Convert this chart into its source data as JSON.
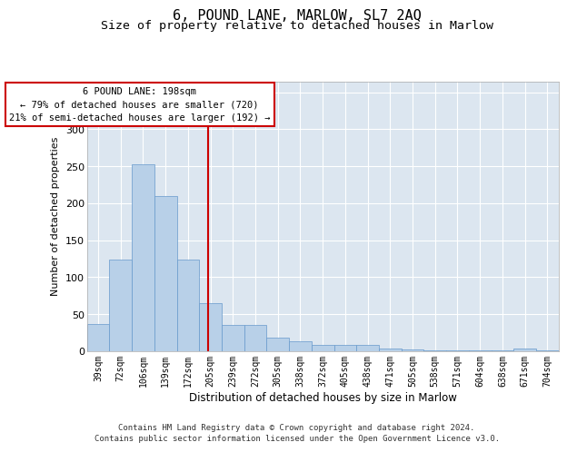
{
  "title1": "6, POUND LANE, MARLOW, SL7 2AQ",
  "title2": "Size of property relative to detached houses in Marlow",
  "xlabel": "Distribution of detached houses by size in Marlow",
  "ylabel": "Number of detached properties",
  "categories": [
    "39sqm",
    "72sqm",
    "106sqm",
    "139sqm",
    "172sqm",
    "205sqm",
    "239sqm",
    "272sqm",
    "305sqm",
    "338sqm",
    "372sqm",
    "405sqm",
    "438sqm",
    "471sqm",
    "505sqm",
    "538sqm",
    "571sqm",
    "604sqm",
    "638sqm",
    "671sqm",
    "704sqm"
  ],
  "values": [
    37,
    124,
    253,
    210,
    124,
    65,
    35,
    35,
    19,
    13,
    9,
    9,
    8,
    4,
    2,
    1,
    1,
    1,
    1,
    4,
    1
  ],
  "bar_color": "#b8d0e8",
  "bar_edge_color": "#6699cc",
  "background_color": "#dce6f0",
  "grid_color": "#ffffff",
  "vline_x": 4.88,
  "vline_color": "#cc0000",
  "annotation_line1": "6 POUND LANE: 198sqm",
  "annotation_line2": "← 79% of detached houses are smaller (720)",
  "annotation_line3": "21% of semi-detached houses are larger (192) →",
  "annotation_box_color": "#ffffff",
  "annotation_box_edge": "#cc0000",
  "ylim": [
    0,
    365
  ],
  "yticks": [
    0,
    50,
    100,
    150,
    200,
    250,
    300,
    350
  ],
  "footer1": "Contains HM Land Registry data © Crown copyright and database right 2024.",
  "footer2": "Contains public sector information licensed under the Open Government Licence v3.0.",
  "title1_fontsize": 11,
  "title2_fontsize": 9.5,
  "tick_fontsize": 7,
  "ylabel_fontsize": 8,
  "xlabel_fontsize": 8.5,
  "annotation_fontsize": 7.5,
  "footer_fontsize": 6.5
}
